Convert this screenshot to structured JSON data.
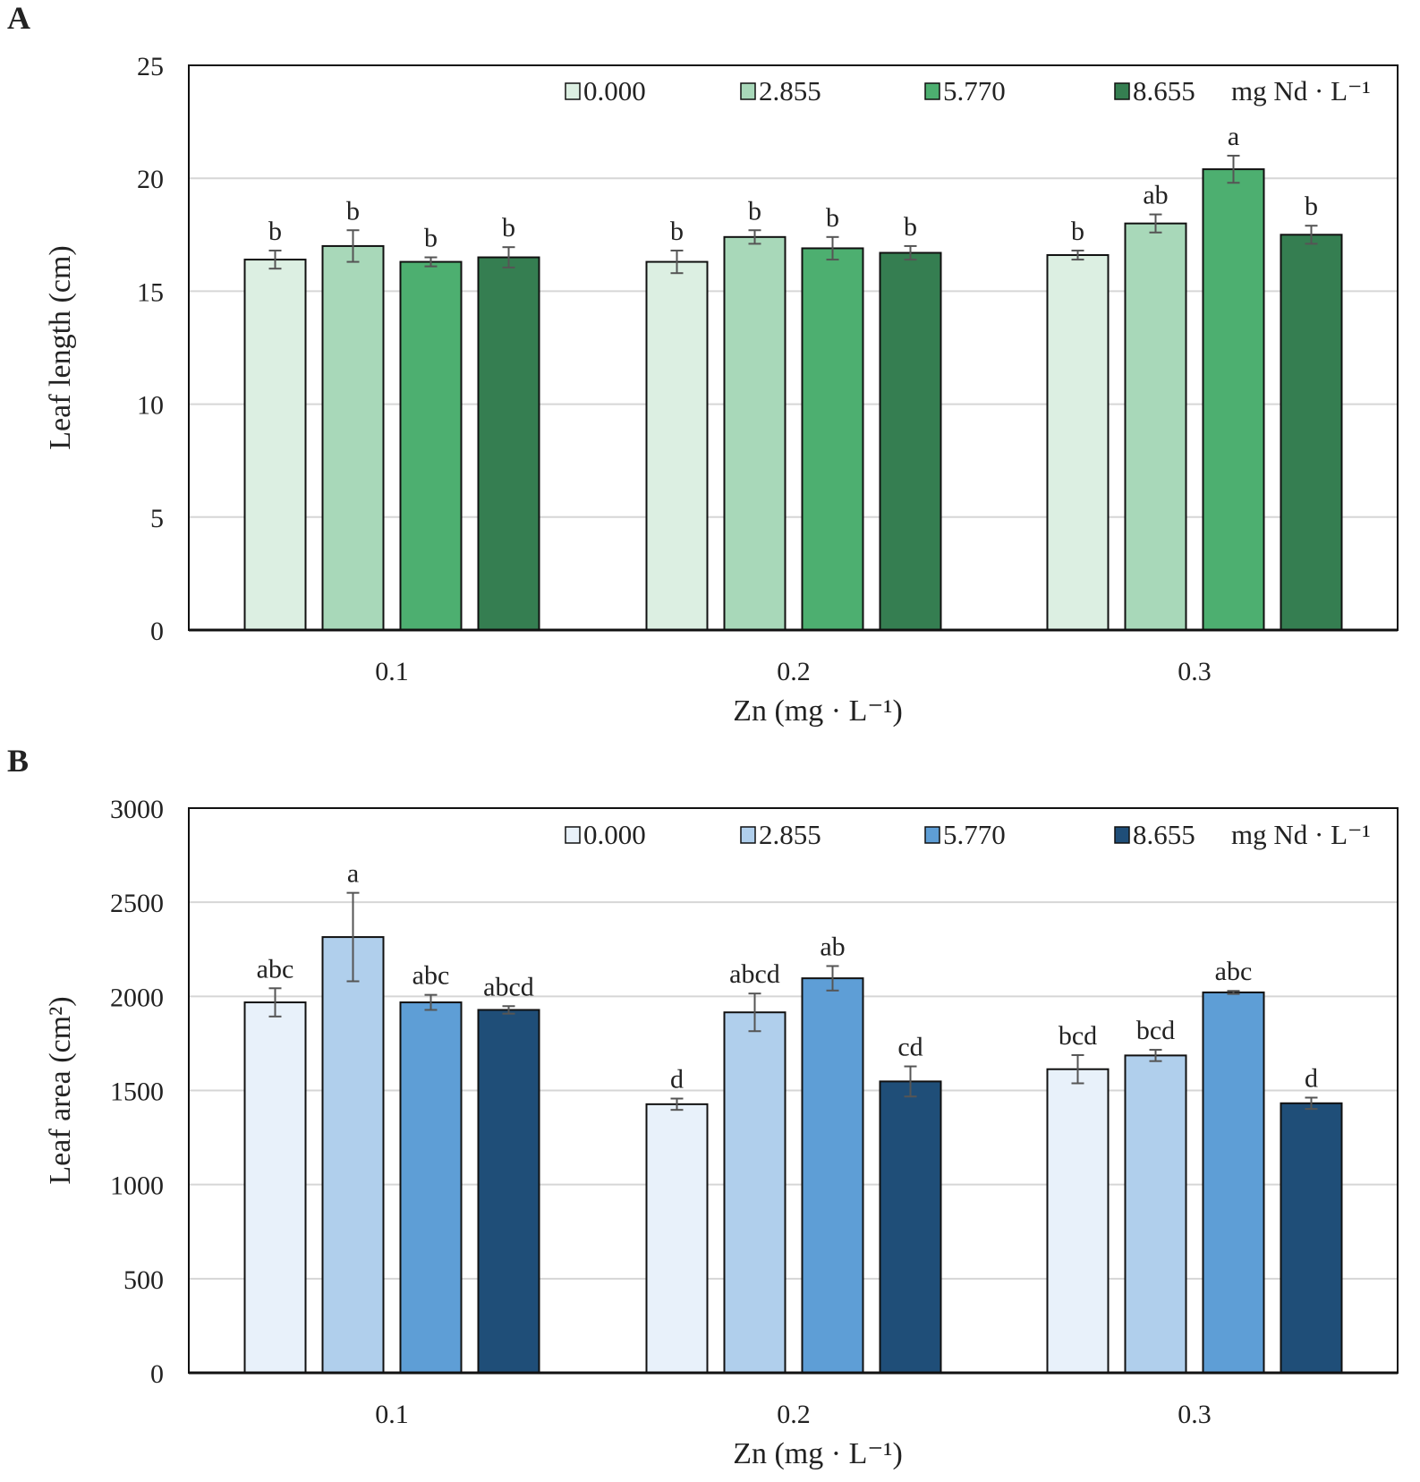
{
  "chart_data": [
    {
      "panel_label": "A",
      "type": "bar",
      "xlabel": "Zn (mg · L⁻¹)",
      "ylabel": "Leaf length (cm)",
      "ylim": [
        0,
        25
      ],
      "yticks": [
        "0",
        "5",
        "10",
        "15",
        "20",
        "25"
      ],
      "grid": true,
      "legend_placement": "top-right",
      "legend_unit": "mg Nd · L⁻¹",
      "categories": [
        "0.1",
        "0.2",
        "0.3"
      ],
      "series": [
        {
          "name": "0.000",
          "color": "#dcefe2",
          "values": [
            16.4,
            16.3,
            16.6
          ],
          "errors": [
            0.4,
            0.5,
            0.2
          ],
          "letters": [
            "b",
            "b",
            "b"
          ]
        },
        {
          "name": "2.855",
          "color": "#a8d8b9",
          "values": [
            17.0,
            17.4,
            18.0
          ],
          "errors": [
            0.7,
            0.3,
            0.4
          ],
          "letters": [
            "b",
            "b",
            "ab"
          ]
        },
        {
          "name": "5.770",
          "color": "#4daf70",
          "values": [
            16.3,
            16.9,
            20.4
          ],
          "errors": [
            0.2,
            0.5,
            0.6
          ],
          "letters": [
            "b",
            "b",
            "a"
          ]
        },
        {
          "name": "8.655",
          "color": "#357e51",
          "values": [
            16.5,
            16.7,
            17.5
          ],
          "errors": [
            0.45,
            0.3,
            0.4
          ],
          "letters": [
            "b",
            "b",
            "b"
          ]
        }
      ]
    },
    {
      "panel_label": "B",
      "type": "bar",
      "xlabel": "Zn (mg · L⁻¹)",
      "ylabel": "Leaf area (cm²)",
      "ylim": [
        0,
        3000
      ],
      "yticks": [
        "0",
        "500",
        "1000",
        "1500",
        "2000",
        "2500",
        "3000"
      ],
      "grid": true,
      "legend_placement": "top-right",
      "legend_unit": "mg Nd · L⁻¹",
      "categories": [
        "0.1",
        "0.2",
        "0.3"
      ],
      "series": [
        {
          "name": "0.000",
          "color": "#e8f1fa",
          "values": [
            1968,
            1427,
            1613
          ],
          "errors": [
            75,
            30,
            75
          ],
          "letters": [
            "abc",
            "d",
            "bcd"
          ]
        },
        {
          "name": "2.855",
          "color": "#b0cfec",
          "values": [
            2315,
            1915,
            1686
          ],
          "errors": [
            235,
            100,
            30
          ],
          "letters": [
            "a",
            "abcd",
            "bcd"
          ]
        },
        {
          "name": "5.770",
          "color": "#5e9ed6",
          "values": [
            1968,
            2096,
            2021
          ],
          "errors": [
            40,
            65,
            8
          ],
          "letters": [
            "abc",
            "ab",
            "abc"
          ]
        },
        {
          "name": "8.655",
          "color": "#1f4e78",
          "values": [
            1928,
            1548,
            1432
          ],
          "errors": [
            20,
            80,
            30
          ],
          "letters": [
            "abcd",
            "cd",
            "d"
          ]
        }
      ]
    }
  ]
}
